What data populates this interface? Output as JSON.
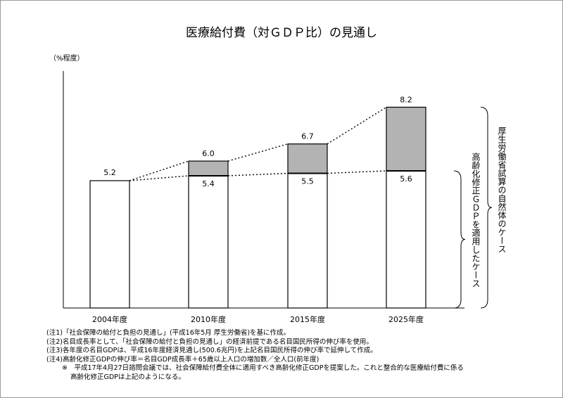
{
  "chart_data": {
    "type": "bar",
    "title": "医療給付費（対ＧＤＰ比）の見通し",
    "ylabel": "（%程度）",
    "categories": [
      "2004年度",
      "2010年度",
      "2015年度",
      "2025年度"
    ],
    "ylim": [
      0,
      9
    ],
    "series": [
      {
        "name": "高齢化修正ＧＤＰを適用したケース",
        "values": [
          5.2,
          5.4,
          5.5,
          5.6
        ],
        "labels": [
          "5.2",
          "5.4",
          "5.5",
          "5.6"
        ]
      },
      {
        "name": "厚生労働省試算の自然体のケース",
        "values": [
          5.2,
          6.0,
          6.7,
          8.2
        ],
        "labels": [
          "5.2",
          "6.0",
          "6.7",
          "8.2"
        ]
      }
    ],
    "colors": {
      "base": "#ffffff",
      "increment": "#b3b3b3",
      "outline": "#000000"
    },
    "grid": false
  },
  "notes": [
    "(注1)「社会保障の給付と負担の見通し」(平成16年5月 厚生労働省)を基に作成。",
    "(注2)名目成長率として、「社会保障の給付と負担の見通し」の経済前提である名目国民所得の伸び率を使用。",
    "(注3)各年度の名目GDPは、平成16年度経済見通し(500.6兆円)を上記名目国民所得の伸び率で延伸して作成。",
    "(注4)高齢化修正GDPの伸び率＝名目GDP成長率＋65歳以上人口の増加数／全人口(前年度)",
    "※　平成17年4月27日諮問会議では、社会保障給付費全体に適用すべき高齢化修正GDPを提案した。これと整合的な医療給付費に係る",
    "高齢化修正GDPは上記のようになる。"
  ]
}
